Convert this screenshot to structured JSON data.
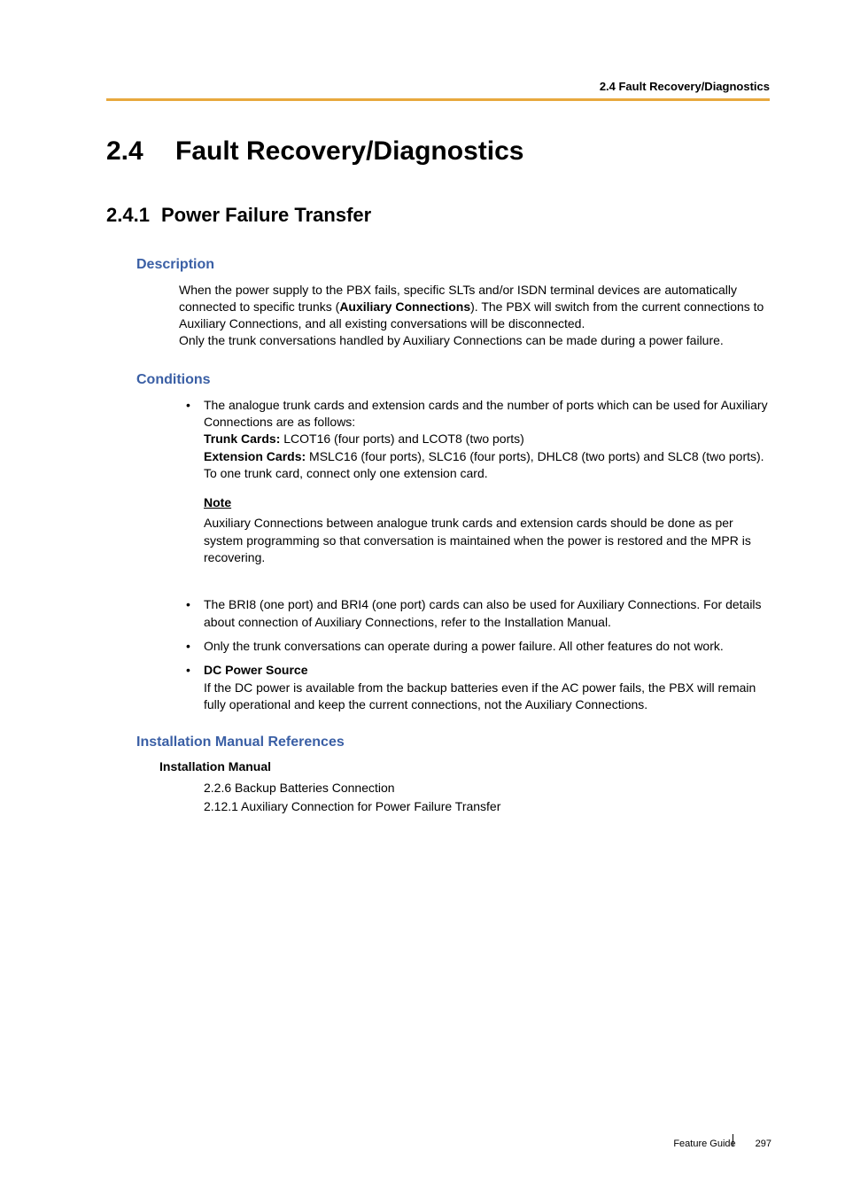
{
  "header": {
    "breadcrumb": "2.4 Fault Recovery/Diagnostics"
  },
  "title": {
    "num": "2.4",
    "text": "Fault Recovery/Diagnostics"
  },
  "subtitle": {
    "num": "2.4.1",
    "text": "Power Failure Transfer"
  },
  "description": {
    "heading": "Description",
    "para1": "When the power supply to the PBX fails, specific SLTs and/or ISDN terminal devices are automatically connected to specific trunks (",
    "bold1": "Auxiliary Connections",
    "para2": "). The PBX will switch from the current connections to Auxiliary Connections, and all existing conversations will be disconnected.",
    "para3": "Only the trunk conversations handled by Auxiliary Connections can be made during a power failure."
  },
  "conditions": {
    "heading": "Conditions",
    "bullet1_intro": "The analogue trunk cards and extension cards and the number of ports which can be used for Auxiliary Connections are as follows:",
    "bullet1_trunk_label": "Trunk Cards:",
    "bullet1_trunk_text": " LCOT16 (four ports) and LCOT8 (two ports)",
    "bullet1_ext_label": "Extension Cards:",
    "bullet1_ext_text": " MSLC16 (four ports), SLC16 (four ports), DHLC8 (two ports) and SLC8 (two ports).",
    "bullet1_tail": "To one trunk card, connect only one extension card.",
    "note_label": "Note",
    "note_text": "Auxiliary Connections between analogue trunk cards and extension cards should be done as per system programming so that conversation is maintained when the power is restored and the MPR is recovering.",
    "bullet2": "The BRI8 (one port) and BRI4 (one port) cards can also be used for Auxiliary Connections. For details about connection of Auxiliary Connections, refer to the Installation Manual.",
    "bullet3": "Only the trunk conversations can operate during a power failure. All other features do not work.",
    "bullet4_label": "DC Power Source",
    "bullet4_text": "If the DC power is available from the backup batteries even if the AC power fails, the PBX will remain fully operational and keep the current connections, not the Auxiliary Connections."
  },
  "references": {
    "heading": "Installation Manual References",
    "subheading": "Installation Manual",
    "items": [
      "2.2.6 Backup Batteries Connection",
      "2.12.1 Auxiliary Connection for Power Failure Transfer"
    ]
  },
  "footer": {
    "label": "Feature Guide",
    "page": "297"
  },
  "colors": {
    "accent": "#e8a83e",
    "heading_blue": "#3a5fa5",
    "text": "#000000",
    "background": "#ffffff"
  }
}
